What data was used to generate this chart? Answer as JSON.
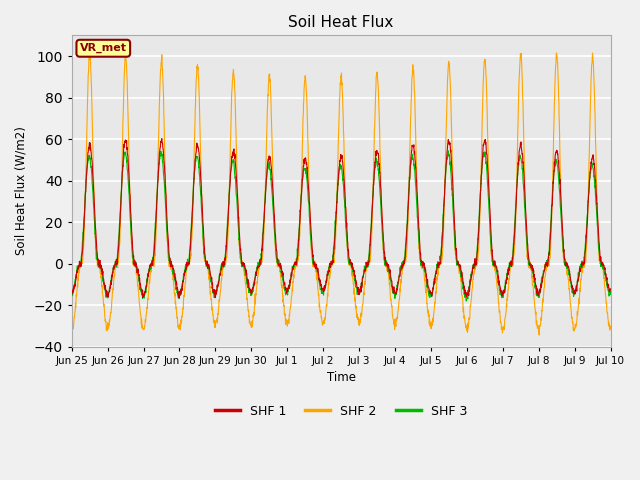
{
  "title": "Soil Heat Flux",
  "ylabel": "Soil Heat Flux (W/m2)",
  "xlabel": "Time",
  "ylim": [
    -40,
    110
  ],
  "yticks": [
    -40,
    -20,
    0,
    20,
    40,
    60,
    80,
    100
  ],
  "background_color": "#f0f0f0",
  "plot_bg_color": "#e8e8e8",
  "grid_color": "#ffffff",
  "annotation_text": "VR_met",
  "annotation_box_color": "#ffff99",
  "annotation_border_color": "#8b0000",
  "series_colors": [
    "#cc0000",
    "#ffa500",
    "#00bb00"
  ],
  "series_labels": [
    "SHF 1",
    "SHF 2",
    "SHF 3"
  ],
  "n_days": 15,
  "points_per_day": 144,
  "shf1_amp_day": 55,
  "shf1_amp_night": -14,
  "shf2_amp_day": 95,
  "shf2_amp_night": -30,
  "shf3_amp_day": 50,
  "shf3_amp_night": -15,
  "tick_labels": [
    "Jun 25",
    "Jun 26",
    "Jun 27",
    "Jun 28",
    "Jun 29",
    "Jun 30",
    "Jul 1",
    "Jul 2",
    "Jul 3",
    "Jul 4",
    "Jul 5",
    "Jul 6",
    "Jul 7",
    "Jul 8",
    "Jul 9",
    "Jul 10"
  ],
  "tick_positions": [
    0,
    1,
    2,
    3,
    4,
    5,
    6,
    7,
    8,
    9,
    10,
    11,
    12,
    13,
    14,
    15
  ]
}
